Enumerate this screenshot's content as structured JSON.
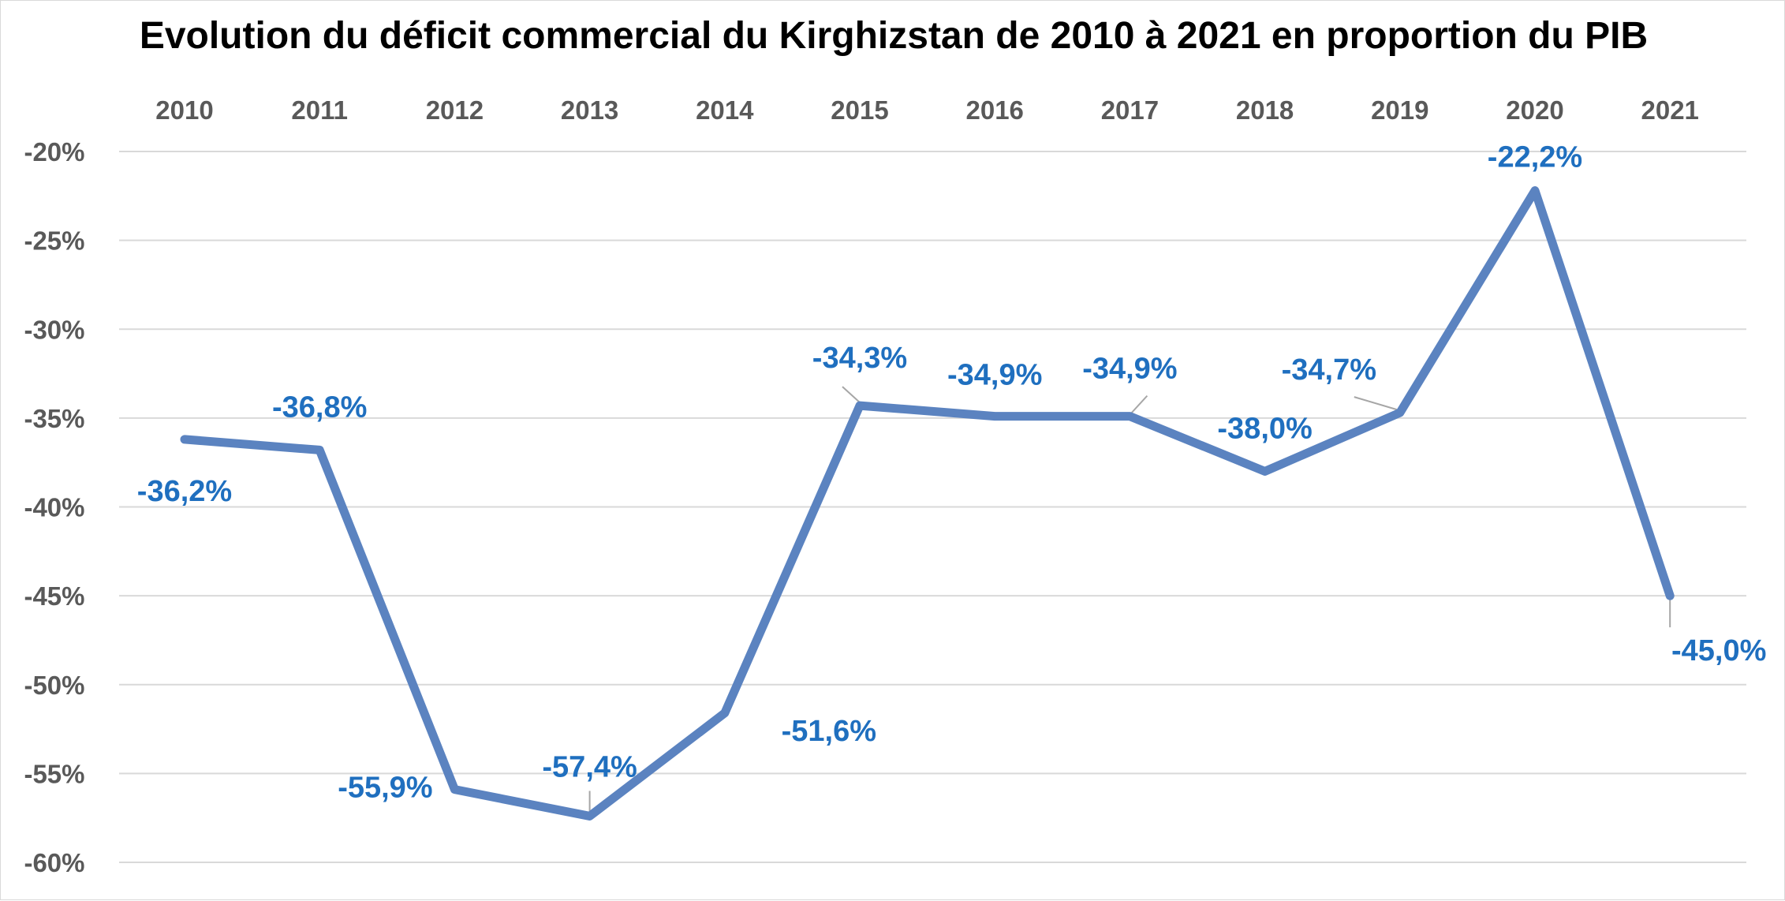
{
  "chart_data": {
    "type": "line",
    "title": "Evolution du déficit commercial du Kirghizstan de 2010 à 2021 en proportion du PIB",
    "xlabel": "",
    "ylabel": "",
    "categories": [
      "2010",
      "2011",
      "2012",
      "2013",
      "2014",
      "2015",
      "2016",
      "2017",
      "2018",
      "2019",
      "2020",
      "2021"
    ],
    "series": [
      {
        "values": [
          -36.2,
          -36.8,
          -55.9,
          -57.4,
          -51.6,
          -34.3,
          -34.9,
          -34.9,
          -38.0,
          -34.7,
          -22.2,
          -45.0
        ],
        "data_labels": [
          "-36,2%",
          "-36,8%",
          "-55,9%",
          "-57,4%",
          "-51,6%",
          "-34,3%",
          "-34,9%",
          "-34,9%",
          "-38,0%",
          "-34,7%",
          "-22,2%",
          "-45,0%"
        ]
      }
    ],
    "ylim": [
      -60,
      -20
    ],
    "yticks": [
      -20,
      -25,
      -30,
      -35,
      -40,
      -45,
      -50,
      -55,
      -60
    ],
    "ytick_labels": [
      "-20%",
      "-25%",
      "-30%",
      "-35%",
      "-40%",
      "-45%",
      "-50%",
      "-55%",
      "-60%"
    ],
    "x_axis_position": "top",
    "grid": true,
    "legend": "none",
    "colors": {
      "line": "#5b83c0",
      "labels": "#1f6fbf",
      "grid": "#d9d9d9",
      "ticks": "#595959"
    }
  }
}
